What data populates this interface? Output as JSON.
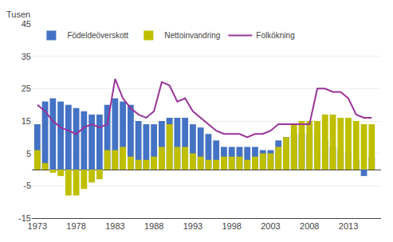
{
  "chart_data": {
    "type": "bar",
    "ylabel": "Tusen",
    "x": [
      1973,
      1974,
      1975,
      1976,
      1977,
      1978,
      1979,
      1980,
      1981,
      1982,
      1983,
      1984,
      1985,
      1986,
      1987,
      1988,
      1989,
      1990,
      1991,
      1992,
      1993,
      1994,
      1995,
      1996,
      1997,
      1998,
      1999,
      2000,
      2001,
      2002,
      2003,
      2004,
      2005,
      2006,
      2007,
      2008,
      2009,
      2010,
      2011,
      2012,
      2013,
      2014,
      2015,
      2016
    ],
    "series": [
      {
        "name": "Födeldeöverskott",
        "type": "bar",
        "color": "#4472c4",
        "values": [
          14,
          21,
          22,
          21,
          20,
          19,
          18,
          17,
          17,
          20,
          22,
          21,
          20,
          15,
          14,
          14,
          15,
          16,
          16,
          16,
          14,
          13,
          11,
          9,
          7,
          7,
          7,
          7,
          7,
          6,
          6,
          9,
          10,
          11,
          11,
          11,
          10,
          9,
          7,
          6,
          5,
          3,
          -2,
          4
        ]
      },
      {
        "name": "Nettoinvandring",
        "type": "bar",
        "color": "#bfbf00",
        "values": [
          6,
          2,
          -1,
          -2,
          -8,
          -8,
          -6,
          -4,
          -3,
          6,
          6,
          7,
          4,
          3,
          3,
          4,
          7,
          14,
          7,
          7,
          5,
          4,
          3,
          3,
          4,
          4,
          4,
          3,
          4,
          5,
          5,
          7,
          10,
          14,
          15,
          15,
          15,
          17,
          17,
          16,
          16,
          15,
          14,
          14
        ]
      },
      {
        "name": "Folkökning",
        "type": "line",
        "color": "#993399",
        "values": [
          20,
          18,
          15,
          13,
          12,
          11,
          13,
          14,
          13,
          14,
          28,
          22,
          19,
          17,
          16,
          18,
          27,
          26,
          21,
          22,
          18,
          16,
          14,
          12,
          11,
          11,
          11,
          10,
          11,
          11,
          12,
          14,
          14,
          14,
          14,
          14,
          25,
          25,
          24,
          24,
          22,
          17,
          16,
          16
        ]
      }
    ],
    "xlim": [
      1972.3,
      2017.2
    ],
    "xticks": [
      1973,
      1978,
      1983,
      1988,
      1993,
      1998,
      2003,
      2008,
      2013
    ],
    "ylim": [
      -15,
      45
    ],
    "yticks": [
      -15,
      -5,
      5,
      15,
      25,
      35,
      45
    ],
    "grid": "y",
    "legend": "upper left"
  }
}
